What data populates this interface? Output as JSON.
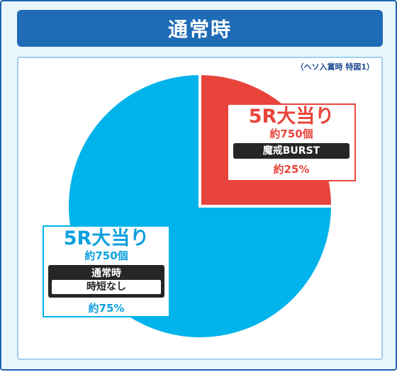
{
  "header": {
    "title": "通常時"
  },
  "note": "（ヘソ入賞時 特図1）",
  "colors": {
    "slice_red": "#e8443c",
    "slice_blue": "#00b3ea",
    "header_bg": "#1f6bb6"
  },
  "chart_data": {
    "type": "pie",
    "slices": [
      {
        "name": "5R大当り 魔戒BURST",
        "value": 25,
        "color": "#e8443c"
      },
      {
        "name": "5R大当り 通常時 時短なし",
        "value": 75,
        "color": "#00b3ea"
      }
    ]
  },
  "labels": {
    "red": {
      "title": "5R大当り",
      "count": "約750個",
      "mode": "魔戒BURST",
      "pct": "約25%"
    },
    "blue": {
      "title": "5R大当り",
      "count": "約750個",
      "mode": "通常時",
      "sub": "時短なし",
      "pct": "約75%"
    }
  }
}
